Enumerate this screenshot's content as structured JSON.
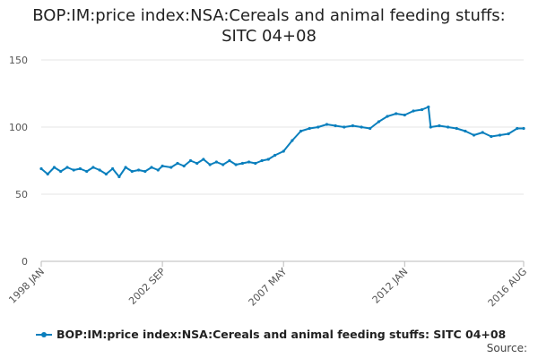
{
  "chart_data": {
    "type": "line",
    "title_lines": [
      "BOP:IM:price index:NSA:Cereals and animal feeding stuffs:",
      "SITC 04+08"
    ],
    "xlabel": "",
    "ylabel": "",
    "ylim": [
      0,
      150
    ],
    "yticks": [
      0,
      50,
      100,
      150
    ],
    "x_tick_labels": [
      "1998 JAN",
      "2002 SEP",
      "2007 MAY",
      "2012 JAN",
      "2016 AUG"
    ],
    "x_range": [
      "1998 JAN",
      "2016 AUG"
    ],
    "grid": true,
    "legend_position": "bottom",
    "series": [
      {
        "name": "BOP:IM:price index:NSA:Cereals and animal feeding stuffs: SITC 04+08",
        "color": "#0a7fbd",
        "points": [
          [
            "1998 JAN",
            69
          ],
          [
            "1998 APR",
            65
          ],
          [
            "1998 JUL",
            70
          ],
          [
            "1998 OCT",
            67
          ],
          [
            "1999 JAN",
            70
          ],
          [
            "1999 APR",
            68
          ],
          [
            "1999 JUL",
            69
          ],
          [
            "1999 OCT",
            67
          ],
          [
            "2000 JAN",
            70
          ],
          [
            "2000 APR",
            68
          ],
          [
            "2000 JUL",
            65
          ],
          [
            "2000 OCT",
            69
          ],
          [
            "2001 JAN",
            63
          ],
          [
            "2001 APR",
            70
          ],
          [
            "2001 JUL",
            67
          ],
          [
            "2001 OCT",
            68
          ],
          [
            "2002 JAN",
            67
          ],
          [
            "2002 APR",
            70
          ],
          [
            "2002 JUL",
            68
          ],
          [
            "2002 SEP",
            71
          ],
          [
            "2003 JAN",
            70
          ],
          [
            "2003 APR",
            73
          ],
          [
            "2003 JUL",
            71
          ],
          [
            "2003 OCT",
            75
          ],
          [
            "2004 JAN",
            73
          ],
          [
            "2004 APR",
            76
          ],
          [
            "2004 JUL",
            72
          ],
          [
            "2004 OCT",
            74
          ],
          [
            "2005 JAN",
            72
          ],
          [
            "2005 APR",
            75
          ],
          [
            "2005 JUL",
            72
          ],
          [
            "2005 OCT",
            73
          ],
          [
            "2006 JAN",
            74
          ],
          [
            "2006 APR",
            73
          ],
          [
            "2006 JUL",
            75
          ],
          [
            "2006 OCT",
            76
          ],
          [
            "2007 JAN",
            79
          ],
          [
            "2007 MAY",
            82
          ],
          [
            "2007 SEP",
            90
          ],
          [
            "2008 JAN",
            97
          ],
          [
            "2008 MAY",
            99
          ],
          [
            "2008 SEP",
            100
          ],
          [
            "2009 JAN",
            102
          ],
          [
            "2009 MAY",
            101
          ],
          [
            "2009 SEP",
            100
          ],
          [
            "2010 JAN",
            101
          ],
          [
            "2010 MAY",
            100
          ],
          [
            "2010 SEP",
            99
          ],
          [
            "2011 JAN",
            104
          ],
          [
            "2011 MAY",
            108
          ],
          [
            "2011 SEP",
            110
          ],
          [
            "2012 JAN",
            109
          ],
          [
            "2012 MAY",
            112
          ],
          [
            "2012 SEP",
            113
          ],
          [
            "2012 DEC",
            115
          ],
          [
            "2013 JAN",
            100
          ],
          [
            "2013 MAY",
            101
          ],
          [
            "2013 SEP",
            100
          ],
          [
            "2014 JAN",
            99
          ],
          [
            "2014 MAY",
            97
          ],
          [
            "2014 SEP",
            94
          ],
          [
            "2015 JAN",
            96
          ],
          [
            "2015 MAY",
            93
          ],
          [
            "2015 SEP",
            94
          ],
          [
            "2016 JAN",
            95
          ],
          [
            "2016 MAY",
            99
          ],
          [
            "2016 AUG",
            99
          ]
        ]
      }
    ]
  },
  "footer": {
    "source_label": "Source:"
  }
}
